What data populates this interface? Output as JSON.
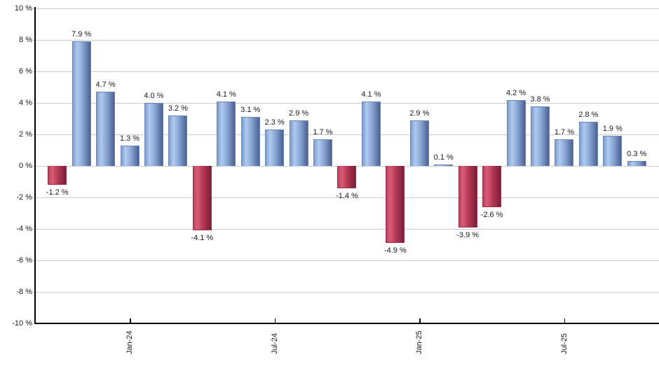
{
  "chart_data": {
    "type": "bar",
    "title": "",
    "y_axis": {
      "min": -10,
      "max": 10,
      "step": 2,
      "tick_suffix": " %",
      "tick_labels": [
        "10 %",
        "8 %",
        "6 %",
        "4 %",
        "2 %",
        "0 %",
        "-2 %",
        "-4 %",
        "-6 %",
        "-8 %",
        "-10 %"
      ],
      "grid": true
    },
    "x_axis": {
      "tick_labels": [
        "Jan-24",
        "Jul-24",
        "Jan-25",
        "Jul-25"
      ],
      "tick_bar_indices": [
        3,
        9,
        15,
        21
      ]
    },
    "bars": [
      {
        "value": -1.2,
        "label": "-1.2 %"
      },
      {
        "value": 7.9,
        "label": "7.9 %"
      },
      {
        "value": 4.7,
        "label": "4.7 %"
      },
      {
        "value": 1.3,
        "label": "1.3 %"
      },
      {
        "value": 4.0,
        "label": "4.0 %"
      },
      {
        "value": 3.2,
        "label": "3.2 %"
      },
      {
        "value": -4.1,
        "label": "-4.1 %"
      },
      {
        "value": 4.1,
        "label": "4.1 %"
      },
      {
        "value": 3.1,
        "label": "3.1 %"
      },
      {
        "value": 2.3,
        "label": "2.3 %"
      },
      {
        "value": 2.9,
        "label": "2.9 %"
      },
      {
        "value": 1.7,
        "label": "1.7 %"
      },
      {
        "value": -1.4,
        "label": "-1.4 %"
      },
      {
        "value": 4.1,
        "label": "4.1 %"
      },
      {
        "value": -4.9,
        "label": "-4.9 %"
      },
      {
        "value": 2.9,
        "label": "2.9 %"
      },
      {
        "value": 0.1,
        "label": "0.1 %"
      },
      {
        "value": -3.9,
        "label": "-3.9 %"
      },
      {
        "value": -2.6,
        "label": "-2.6 %"
      },
      {
        "value": 4.2,
        "label": "4.2 %"
      },
      {
        "value": 3.8,
        "label": "3.8 %"
      },
      {
        "value": 1.7,
        "label": "1.7 %"
      },
      {
        "value": 2.8,
        "label": "2.8 %"
      },
      {
        "value": 1.9,
        "label": "1.9 %"
      },
      {
        "value": 0.3,
        "label": "0.3 %"
      }
    ]
  },
  "colors": {
    "positive_bar_gradient": [
      "#7e9cd0",
      "#b0c9ee",
      "#8aa7d6",
      "#4c6190"
    ],
    "negative_bar_gradient": [
      "#b84158",
      "#d95c77",
      "#b33853",
      "#7c1f39"
    ],
    "positive_bar_border": "#6886b8",
    "negative_bar_border": "#993049",
    "gridline": "#cccccc",
    "axis": "#000000",
    "text": "#1a1a1a",
    "background": "#ffffff"
  }
}
